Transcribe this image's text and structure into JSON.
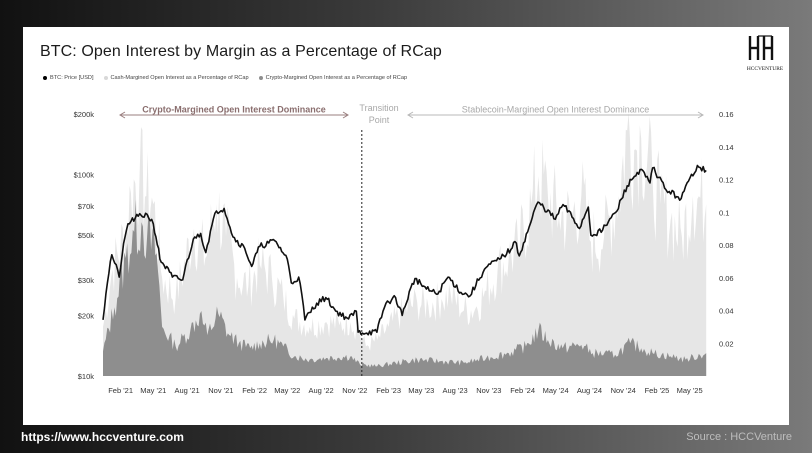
{
  "page": {
    "footer_url": "https://www.hccventure.com",
    "footer_source": "Source : HCCVenture",
    "logo_text": "HCCVENTURE"
  },
  "chart_data": {
    "type": "area",
    "title": "BTC: Open Interest by Margin as a Percentage of RCap",
    "legend": [
      {
        "label": "BTC: Price [USD]",
        "color": "#000000"
      },
      {
        "label": "Cash-Margined Open Interest as a Percentage of RCap",
        "color": "#e6e6e6"
      },
      {
        "label": "Crypto-Margined Open Interest as a Percentage of RCap",
        "color": "#8e8e8e"
      }
    ],
    "y_left": {
      "scale": "log",
      "range": [
        10000,
        200000
      ],
      "ticks": [
        "$200k",
        "$100k",
        "$70k",
        "$50k",
        "$30k",
        "$20k",
        "$10k"
      ],
      "tick_values": [
        200000,
        100000,
        70000,
        50000,
        30000,
        20000,
        10000
      ]
    },
    "y_right": {
      "range": [
        0,
        0.16
      ],
      "ticks": [
        "0.16",
        "0.14",
        "0.12",
        "0.1",
        "0.08",
        "0.06",
        "0.04",
        "0.02"
      ],
      "tick_values": [
        0.16,
        0.14,
        0.12,
        0.1,
        0.08,
        0.06,
        0.04,
        0.02
      ]
    },
    "x_ticks": [
      "Feb '21",
      "May '21",
      "Aug '21",
      "Nov '21",
      "Feb '22",
      "May '22",
      "Aug '22",
      "Nov '22",
      "Feb '23",
      "May '23",
      "Aug '23",
      "Nov '23",
      "Feb '24",
      "May '24",
      "Aug '24",
      "Nov '24",
      "Feb '25",
      "May '25"
    ],
    "x_tick_dates": [
      "2021-02-01",
      "2021-05-01",
      "2021-08-01",
      "2021-11-01",
      "2022-02-01",
      "2022-05-01",
      "2022-08-01",
      "2022-11-01",
      "2023-02-01",
      "2023-05-01",
      "2023-08-01",
      "2023-11-01",
      "2024-02-01",
      "2024-05-01",
      "2024-08-01",
      "2024-11-01",
      "2025-02-01",
      "2025-05-01"
    ],
    "x_range": [
      "2020-12-15",
      "2025-06-20"
    ],
    "annotations": {
      "left_region": "Crypto-Margined Open Interest Dominance",
      "transition": "Transition",
      "transition_2": "Point",
      "right_region": "Stablecoin-Margined Open Interest Dominance",
      "transition_date": "2022-11-20"
    },
    "series": [
      {
        "name": "BTC: Price [USD]",
        "axis": "left",
        "color": "#111111",
        "points": [
          [
            "2020-12-15",
            19000
          ],
          [
            "2021-01-08",
            40000
          ],
          [
            "2021-01-28",
            31000
          ],
          [
            "2021-02-21",
            57000
          ],
          [
            "2021-03-13",
            61000
          ],
          [
            "2021-04-14",
            63500
          ],
          [
            "2021-05-01",
            57000
          ],
          [
            "2021-05-19",
            38000
          ],
          [
            "2021-06-22",
            31000
          ],
          [
            "2021-07-20",
            30000
          ],
          [
            "2021-08-22",
            49000
          ],
          [
            "2021-09-07",
            51000
          ],
          [
            "2021-09-21",
            41000
          ],
          [
            "2021-10-20",
            66000
          ],
          [
            "2021-11-10",
            68000
          ],
          [
            "2021-12-04",
            49000
          ],
          [
            "2022-01-05",
            43000
          ],
          [
            "2022-01-24",
            35000
          ],
          [
            "2022-02-15",
            44000
          ],
          [
            "2022-03-28",
            47000
          ],
          [
            "2022-05-01",
            38000
          ],
          [
            "2022-05-12",
            29000
          ],
          [
            "2022-06-01",
            31000
          ],
          [
            "2022-06-18",
            19000
          ],
          [
            "2022-07-20",
            23000
          ],
          [
            "2022-08-14",
            24500
          ],
          [
            "2022-09-10",
            21000
          ],
          [
            "2022-10-15",
            19200
          ],
          [
            "2022-11-05",
            21000
          ],
          [
            "2022-11-10",
            16500
          ],
          [
            "2022-12-31",
            16500
          ],
          [
            "2023-01-25",
            23000
          ],
          [
            "2023-02-20",
            24500
          ],
          [
            "2023-03-10",
            20000
          ],
          [
            "2023-04-14",
            30500
          ],
          [
            "2023-05-15",
            27000
          ],
          [
            "2023-06-15",
            25500
          ],
          [
            "2023-07-13",
            31000
          ],
          [
            "2023-08-17",
            26000
          ],
          [
            "2023-09-11",
            25000
          ],
          [
            "2023-10-24",
            34500
          ],
          [
            "2023-11-30",
            38000
          ],
          [
            "2023-12-31",
            42500
          ],
          [
            "2024-01-11",
            46500
          ],
          [
            "2024-01-23",
            39500
          ],
          [
            "2024-02-15",
            52000
          ],
          [
            "2024-03-14",
            73000
          ],
          [
            "2024-04-30",
            60000
          ],
          [
            "2024-05-21",
            71000
          ],
          [
            "2024-07-05",
            54000
          ],
          [
            "2024-07-29",
            69000
          ],
          [
            "2024-08-05",
            50000
          ],
          [
            "2024-09-06",
            53000
          ],
          [
            "2024-10-15",
            66000
          ],
          [
            "2024-11-12",
            88000
          ],
          [
            "2024-12-17",
            106000
          ],
          [
            "2025-01-13",
            91000
          ],
          [
            "2025-01-20",
            108000
          ],
          [
            "2025-02-26",
            84000
          ],
          [
            "2025-04-08",
            76000
          ],
          [
            "2025-05-22",
            111000
          ],
          [
            "2025-06-15",
            105000
          ]
        ]
      },
      {
        "name": "Cash-Margined Open Interest as a Percentage of RCap",
        "axis": "right",
        "color": "#e6e6e6",
        "points": [
          [
            "2020-12-15",
            0.03
          ],
          [
            "2021-01-10",
            0.065
          ],
          [
            "2021-02-15",
            0.088
          ],
          [
            "2021-03-01",
            0.112
          ],
          [
            "2021-03-25",
            0.125
          ],
          [
            "2021-04-12",
            0.11
          ],
          [
            "2021-05-01",
            0.105
          ],
          [
            "2021-05-25",
            0.06
          ],
          [
            "2021-07-01",
            0.048
          ],
          [
            "2021-08-20",
            0.09
          ],
          [
            "2021-09-20",
            0.072
          ],
          [
            "2021-10-20",
            0.105
          ],
          [
            "2021-11-15",
            0.085
          ],
          [
            "2021-12-15",
            0.06
          ],
          [
            "2022-01-15",
            0.055
          ],
          [
            "2022-02-15",
            0.068
          ],
          [
            "2022-03-20",
            0.06
          ],
          [
            "2022-04-20",
            0.048
          ],
          [
            "2022-05-20",
            0.035
          ],
          [
            "2022-07-01",
            0.03
          ],
          [
            "2022-08-15",
            0.033
          ],
          [
            "2022-09-20",
            0.031
          ],
          [
            "2022-10-20",
            0.033
          ],
          [
            "2022-11-10",
            0.028
          ],
          [
            "2022-12-01",
            0.018
          ],
          [
            "2023-01-01",
            0.022
          ],
          [
            "2023-02-01",
            0.03
          ],
          [
            "2023-03-15",
            0.04
          ],
          [
            "2023-04-20",
            0.045
          ],
          [
            "2023-05-20",
            0.043
          ],
          [
            "2023-06-25",
            0.047
          ],
          [
            "2023-07-20",
            0.05
          ],
          [
            "2023-08-25",
            0.04
          ],
          [
            "2023-09-25",
            0.041
          ],
          [
            "2023-10-25",
            0.052
          ],
          [
            "2023-11-25",
            0.065
          ],
          [
            "2023-12-25",
            0.072
          ],
          [
            "2024-01-20",
            0.078
          ],
          [
            "2024-02-25",
            0.105
          ],
          [
            "2024-03-15",
            0.122
          ],
          [
            "2024-04-10",
            0.11
          ],
          [
            "2024-05-10",
            0.098
          ],
          [
            "2024-06-10",
            0.095
          ],
          [
            "2024-07-10",
            0.11
          ],
          [
            "2024-08-05",
            0.082
          ],
          [
            "2024-09-10",
            0.085
          ],
          [
            "2024-10-20",
            0.11
          ],
          [
            "2024-11-12",
            0.15
          ],
          [
            "2024-12-01",
            0.138
          ],
          [
            "2024-12-20",
            0.145
          ],
          [
            "2025-01-20",
            0.12
          ],
          [
            "2025-02-10",
            0.105
          ],
          [
            "2025-03-10",
            0.095
          ],
          [
            "2025-04-10",
            0.085
          ],
          [
            "2025-05-10",
            0.11
          ],
          [
            "2025-06-15",
            0.105
          ]
        ]
      },
      {
        "name": "Crypto-Margined Open Interest as a Percentage of RCap",
        "axis": "right",
        "color": "#8e8e8e",
        "points": [
          [
            "2020-12-15",
            0.015
          ],
          [
            "2021-01-15",
            0.042
          ],
          [
            "2021-02-15",
            0.072
          ],
          [
            "2021-03-10",
            0.088
          ],
          [
            "2021-03-30",
            0.094
          ],
          [
            "2021-04-14",
            0.085
          ],
          [
            "2021-05-10",
            0.075
          ],
          [
            "2021-05-25",
            0.03
          ],
          [
            "2021-07-01",
            0.018
          ],
          [
            "2021-08-10",
            0.028
          ],
          [
            "2021-09-05",
            0.038
          ],
          [
            "2021-09-25",
            0.025
          ],
          [
            "2021-10-25",
            0.038
          ],
          [
            "2021-11-20",
            0.026
          ],
          [
            "2021-12-20",
            0.02
          ],
          [
            "2022-01-20",
            0.017
          ],
          [
            "2022-02-15",
            0.02
          ],
          [
            "2022-03-25",
            0.022
          ],
          [
            "2022-04-20",
            0.018
          ],
          [
            "2022-05-20",
            0.012
          ],
          [
            "2022-07-01",
            0.01
          ],
          [
            "2022-08-15",
            0.011
          ],
          [
            "2022-10-20",
            0.012
          ],
          [
            "2022-11-15",
            0.007
          ],
          [
            "2023-01-01",
            0.006
          ],
          [
            "2023-02-20",
            0.008
          ],
          [
            "2023-04-20",
            0.01
          ],
          [
            "2023-06-20",
            0.009
          ],
          [
            "2023-08-25",
            0.008
          ],
          [
            "2023-10-25",
            0.011
          ],
          [
            "2023-12-25",
            0.014
          ],
          [
            "2024-02-10",
            0.018
          ],
          [
            "2024-03-15",
            0.028
          ],
          [
            "2024-04-10",
            0.022
          ],
          [
            "2024-05-20",
            0.017
          ],
          [
            "2024-07-10",
            0.019
          ],
          [
            "2024-08-10",
            0.014
          ],
          [
            "2024-10-10",
            0.013
          ],
          [
            "2024-11-20",
            0.02
          ],
          [
            "2024-12-20",
            0.017
          ],
          [
            "2025-01-20",
            0.014
          ],
          [
            "2025-03-10",
            0.012
          ],
          [
            "2025-04-20",
            0.01
          ],
          [
            "2025-06-15",
            0.014
          ]
        ]
      }
    ]
  }
}
